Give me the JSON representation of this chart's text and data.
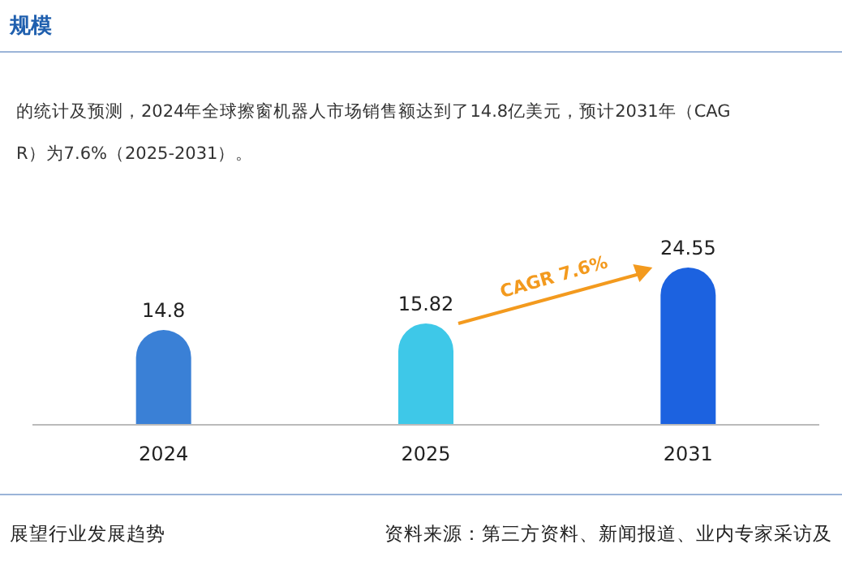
{
  "chart_data": {
    "type": "bar",
    "title": "规模",
    "subtitle": "的统计及预测，2024年全球擦窗机器人市场销售额达到了14.8亿美元，预计2031年（CAGR）为7.6%（2025-2031）。",
    "categories": [
      "2024",
      "2025",
      "2031"
    ],
    "values": [
      14.8,
      15.82,
      24.55
    ],
    "colors": [
      "#3a80d6",
      "#3ec8e8",
      "#1c62e0"
    ],
    "data_labels": true,
    "annotations": [
      "CAGR 7.6%",
      "展望行业发展趋势",
      "资料来源：第三方资料、新闻报道、业内专家采访及"
    ]
  }
}
